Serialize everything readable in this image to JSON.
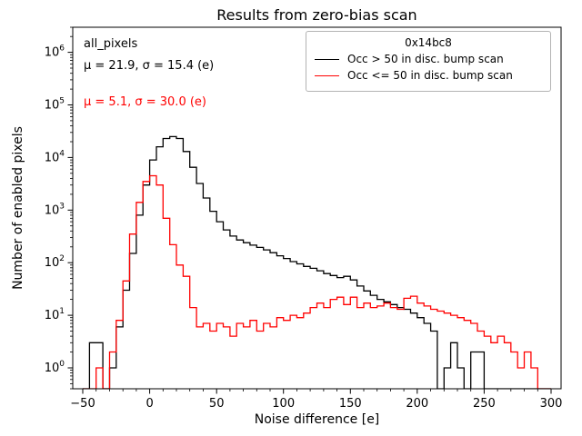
{
  "annotations": {
    "dataset": "all_pixels",
    "stats_black": "μ = 21.9, σ = 15.4 (e)",
    "stats_red": "μ = 5.1, σ = 30.0 (e)"
  },
  "legend": {
    "title": "0x14bc8",
    "position": "upper right"
  },
  "chart_data": {
    "type": "step-histogram",
    "title": "Results from zero-bias scan",
    "xlabel": "Noise difference [e]",
    "ylabel": "Number of enabled pixels",
    "yscale": "log",
    "grid": false,
    "xlim": [
      -57.5,
      307.5
    ],
    "ylim": [
      0.4,
      3000000
    ],
    "bin_start": -50,
    "bin_width": 5,
    "xticks": [
      -50,
      0,
      50,
      100,
      150,
      200,
      250,
      300
    ],
    "xtick_labels": [
      "−50",
      "0",
      "50",
      "100",
      "150",
      "200",
      "250",
      "300"
    ],
    "ytick_exponents": [
      0,
      1,
      2,
      3,
      4,
      5,
      6
    ],
    "series": [
      {
        "name": "Occ > 50 in disc. bump scan",
        "color": "#000000",
        "values": [
          0,
          3,
          3,
          0,
          1,
          6,
          30,
          150,
          800,
          3000,
          9000,
          16000,
          23000,
          25000,
          23000,
          13000,
          6500,
          3200,
          1700,
          950,
          600,
          420,
          320,
          270,
          240,
          215,
          195,
          175,
          155,
          135,
          120,
          105,
          95,
          85,
          78,
          70,
          62,
          57,
          52,
          55,
          47,
          36,
          29,
          24,
          20,
          18,
          16,
          14,
          13,
          11,
          9,
          7,
          5,
          0,
          1,
          3,
          1,
          0,
          2,
          2,
          0,
          0,
          0,
          0,
          0,
          0,
          0,
          0,
          0,
          0
        ]
      },
      {
        "name": "Occ <= 50 in disc. bump scan",
        "color": "#ff0000",
        "values": [
          0,
          0,
          1,
          0,
          2,
          8,
          45,
          350,
          1400,
          3500,
          4500,
          3000,
          700,
          220,
          90,
          55,
          14,
          6,
          7,
          5,
          7,
          6,
          4,
          7,
          6,
          8,
          5,
          7,
          6,
          9,
          8,
          10,
          9,
          11,
          14,
          17,
          14,
          20,
          22,
          16,
          22,
          14,
          17,
          14,
          15,
          17,
          14,
          13,
          21,
          23,
          17,
          15,
          13,
          12,
          11,
          10,
          9,
          8,
          7,
          5,
          4,
          3,
          4,
          3,
          2,
          1,
          2,
          1,
          0,
          0
        ]
      }
    ]
  }
}
